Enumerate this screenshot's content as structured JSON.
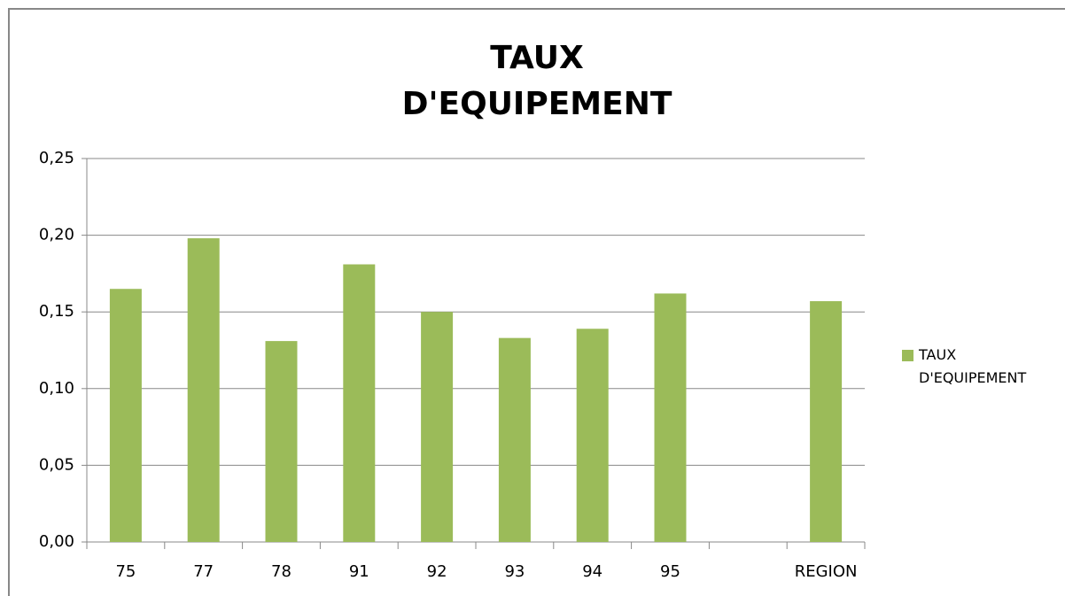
{
  "chart_data": {
    "type": "bar",
    "title": "TAUX D'EQUIPEMENT",
    "categories": [
      "75",
      "77",
      "78",
      "91",
      "92",
      "93",
      "94",
      "95",
      null,
      "REGION"
    ],
    "series": [
      {
        "name": "TAUX D'EQUIPEMENT",
        "color": "#9bbb59",
        "values": [
          0.165,
          0.198,
          0.131,
          0.181,
          0.15,
          0.133,
          0.139,
          0.162,
          null,
          0.157
        ]
      }
    ],
    "ylim": [
      0,
      0.25
    ],
    "yticks": [
      {
        "value": 0,
        "label": "0,00"
      },
      {
        "value": 0.05,
        "label": "0,05"
      },
      {
        "value": 0.1,
        "label": "0,10"
      },
      {
        "value": 0.15,
        "label": "0,15"
      },
      {
        "value": 0.2,
        "label": "0,20"
      },
      {
        "value": 0.25,
        "label": "0,25"
      }
    ],
    "grid": true,
    "legend": "right"
  }
}
